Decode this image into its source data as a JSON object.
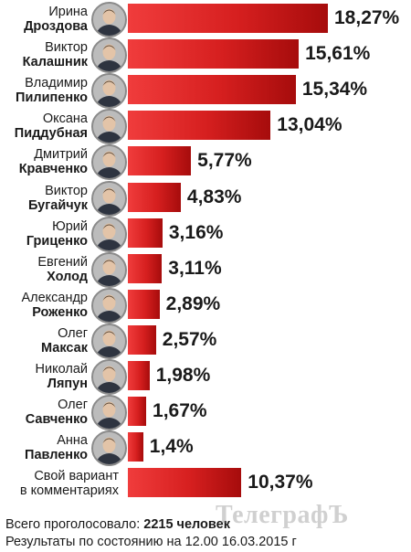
{
  "chart_data": {
    "type": "bar",
    "orientation": "horizontal",
    "categories": [
      {
        "first": "Ирина",
        "last": "Дроздова"
      },
      {
        "first": "Виктор",
        "last": "Калашник"
      },
      {
        "first": "Владимир",
        "last": "Пилипенко"
      },
      {
        "first": "Оксана",
        "last": "Пиддубная"
      },
      {
        "first": "Дмитрий",
        "last": "Кравченко"
      },
      {
        "first": "Виктор",
        "last": "Бугайчук"
      },
      {
        "first": "Юрий",
        "last": "Гриценко"
      },
      {
        "first": "Евгений",
        "last": "Холод"
      },
      {
        "first": "Александр",
        "last": "Роженко"
      },
      {
        "first": "Олег",
        "last": "Максак"
      },
      {
        "first": "Николай",
        "last": "Ляпун"
      },
      {
        "first": "Олег",
        "last": "Савченко"
      },
      {
        "first": "Анна",
        "last": "Павленко"
      },
      {
        "first": "Свой вариант",
        "last": "в комментариях",
        "no_photo": true
      }
    ],
    "values": [
      18.27,
      15.61,
      15.34,
      13.04,
      5.77,
      4.83,
      3.16,
      3.11,
      2.89,
      2.57,
      1.98,
      1.67,
      1.4,
      10.37
    ],
    "value_labels": [
      "18,27%",
      "15,61%",
      "15,34%",
      "13,04%",
      "5,77%",
      "4,83%",
      "3,16%",
      "3,11%",
      "2,89%",
      "2,57%",
      "1,98%",
      "1,67%",
      "1,4%",
      "10,37%"
    ],
    "bar_color": "#d61f1f",
    "title": "",
    "xlabel": "",
    "ylabel": "",
    "xlim": [
      0,
      18.27
    ]
  },
  "footer": {
    "total_label": "Всего проголосовало:",
    "total_value": "2215 человек",
    "results_note": "Результаты по состоянию на 12.00 16.03.2015 г"
  },
  "watermark": "ТелеграфЪ"
}
